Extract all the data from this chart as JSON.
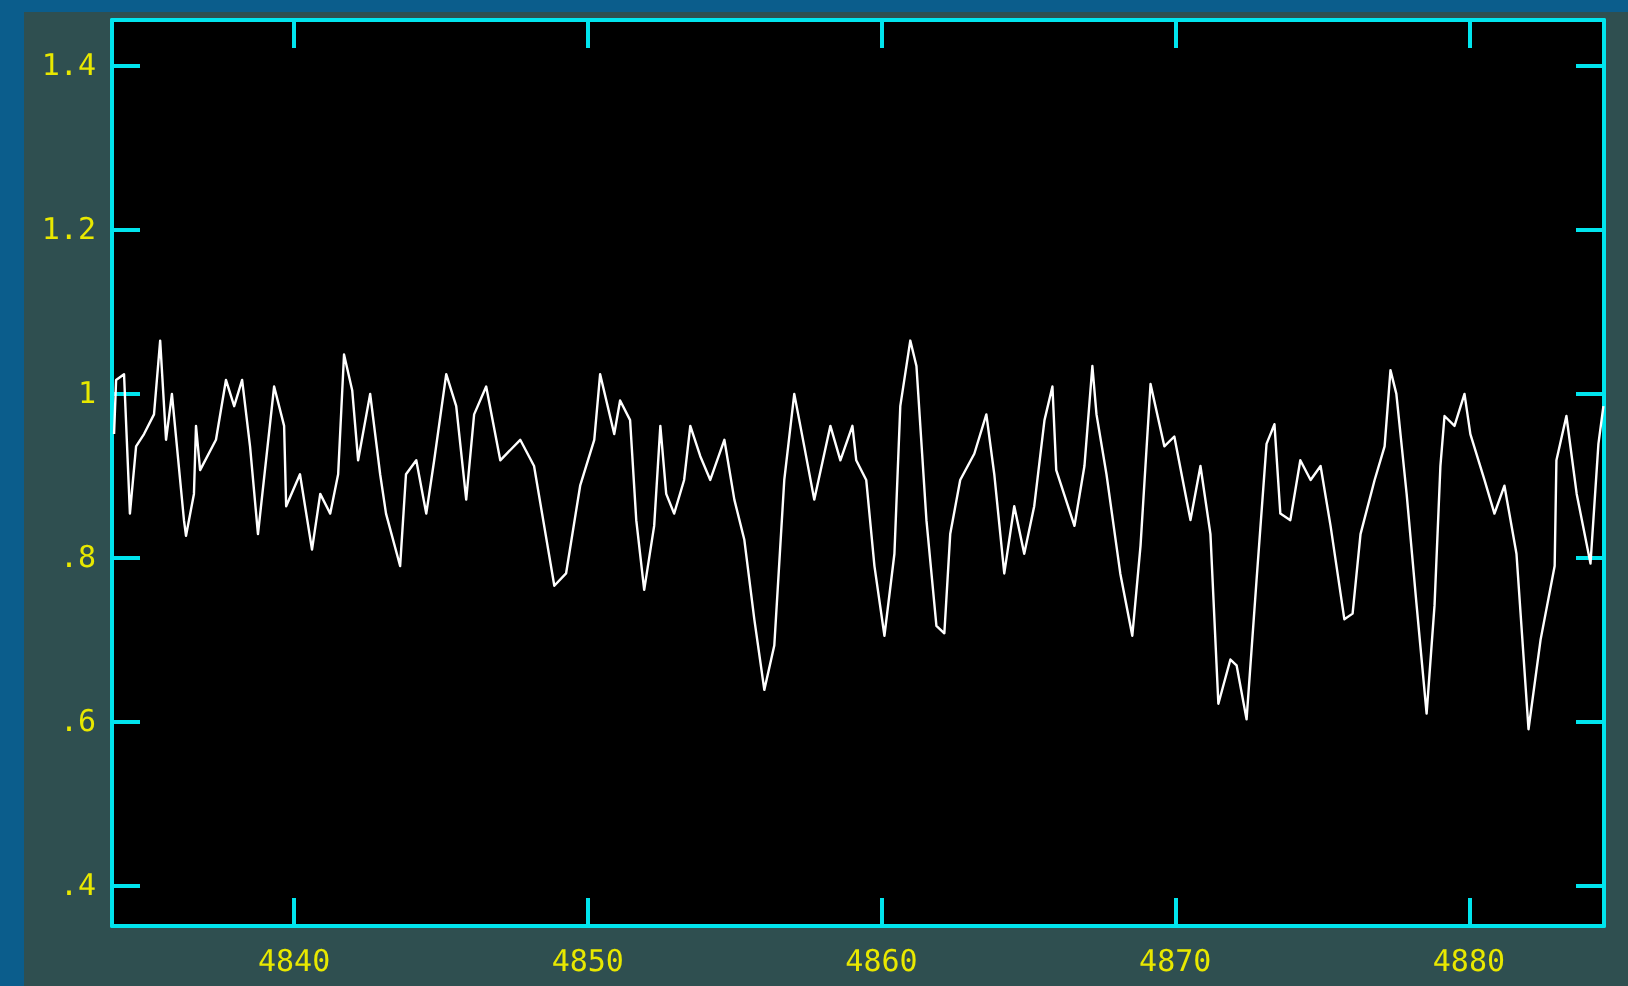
{
  "chart_data": {
    "type": "line",
    "color": "#ffffff",
    "marker": "none",
    "line_style": "solid",
    "xlim": [
      4833.8,
      4884.6
    ],
    "xticks": [
      4840,
      4850,
      4860,
      4870,
      4880
    ],
    "ylim": [
      0.35,
      1.455
    ],
    "yticks": [
      {
        "value": 0.4,
        "label": ".4"
      },
      {
        "value": 0.6,
        "label": ".6"
      },
      {
        "value": 0.8,
        "label": ".8"
      },
      1,
      1.2,
      1.4
    ],
    "x": [
      4833.87,
      4833.94,
      4834.21,
      4834.41,
      4834.62,
      4834.89,
      4835.23,
      4835.44,
      4835.64,
      4835.84,
      4836.25,
      4836.32,
      4836.59,
      4836.66,
      4836.8,
      4837.34,
      4837.68,
      4837.96,
      4838.23,
      4838.5,
      4838.77,
      4839.32,
      4839.66,
      4839.73,
      4840.2,
      4840.61,
      4840.89,
      4841.23,
      4841.5,
      4841.7,
      4841.98,
      4842.18,
      4842.59,
      4842.93,
      4843.13,
      4843.61,
      4843.81,
      4844.16,
      4844.5,
      4844.77,
      4845.18,
      4845.52,
      4845.86,
      4846.13,
      4846.54,
      4847.02,
      4847.7,
      4848.17,
      4848.86,
      4849.26,
      4849.74,
      4850.22,
      4850.42,
      4850.9,
      4851.1,
      4851.44,
      4851.65,
      4851.92,
      4852.26,
      4852.47,
      4852.67,
      4852.94,
      4853.28,
      4853.49,
      4853.83,
      4854.17,
      4854.65,
      4854.99,
      4855.33,
      4855.67,
      4856.01,
      4856.35,
      4856.69,
      4857.03,
      4857.37,
      4857.71,
      4858.26,
      4858.6,
      4859.01,
      4859.14,
      4859.48,
      4859.76,
      4860.1,
      4860.44,
      4860.64,
      4860.98,
      4861.19,
      4861.53,
      4861.87,
      4862.14,
      4862.34,
      4862.68,
      4863.16,
      4863.57,
      4863.84,
      4864.18,
      4864.52,
      4864.86,
      4865.2,
      4865.55,
      4865.82,
      4865.95,
      4866.57,
      4866.91,
      4867.18,
      4867.32,
      4867.66,
      4868.13,
      4868.54,
      4868.82,
      4869.16,
      4869.63,
      4869.97,
      4870.52,
      4870.86,
      4871.2,
      4871.47,
      4871.88,
      4872.09,
      4872.43,
      4872.77,
      4873.11,
      4873.38,
      4873.58,
      4873.92,
      4874.26,
      4874.61,
      4874.95,
      4875.29,
      4875.76,
      4876.04,
      4876.31,
      4876.79,
      4877.13,
      4877.33,
      4877.53,
      4877.88,
      4878.22,
      4878.56,
      4878.83,
      4879.03,
      4879.17,
      4879.51,
      4879.85,
      4880.05,
      4880.53,
      4880.87,
      4881.21,
      4881.62,
      4882.03,
      4882.44,
      4882.92,
      4882.98,
      4883.32,
      4883.67,
      4884.14,
      4884.41,
      4884.58
    ],
    "values": [
      0.95,
      1.016,
      1.023,
      0.853,
      0.935,
      0.95,
      0.974,
      1.064,
      0.943,
      0.999,
      0.845,
      0.826,
      0.877,
      0.96,
      0.906,
      0.943,
      1.016,
      0.984,
      1.016,
      0.935,
      0.828,
      1.008,
      0.96,
      0.862,
      0.901,
      0.809,
      0.877,
      0.853,
      0.901,
      1.047,
      1.003,
      0.918,
      0.999,
      0.901,
      0.853,
      0.789,
      0.901,
      0.918,
      0.853,
      0.918,
      1.023,
      0.984,
      0.87,
      0.974,
      1.008,
      0.918,
      0.943,
      0.911,
      0.765,
      0.78,
      0.887,
      0.943,
      1.023,
      0.95,
      0.991,
      0.967,
      0.845,
      0.76,
      0.838,
      0.96,
      0.877,
      0.853,
      0.894,
      0.96,
      0.923,
      0.894,
      0.943,
      0.87,
      0.821,
      0.724,
      0.638,
      0.692,
      0.894,
      0.999,
      0.935,
      0.87,
      0.96,
      0.918,
      0.96,
      0.918,
      0.894,
      0.789,
      0.704,
      0.804,
      0.984,
      1.064,
      1.033,
      0.845,
      0.716,
      0.707,
      0.828,
      0.894,
      0.926,
      0.974,
      0.901,
      0.78,
      0.862,
      0.804,
      0.862,
      0.967,
      1.008,
      0.906,
      0.838,
      0.911,
      1.033,
      0.974,
      0.901,
      0.78,
      0.704,
      0.814,
      1.011,
      0.935,
      0.947,
      0.845,
      0.911,
      0.828,
      0.621,
      0.675,
      0.668,
      0.602,
      0.772,
      0.938,
      0.962,
      0.853,
      0.845,
      0.918,
      0.894,
      0.911,
      0.838,
      0.724,
      0.731,
      0.828,
      0.894,
      0.935,
      1.028,
      0.999,
      0.877,
      0.741,
      0.609,
      0.741,
      0.911,
      0.972,
      0.96,
      0.999,
      0.95,
      0.894,
      0.853,
      0.887,
      0.804,
      0.59,
      0.699,
      0.789,
      0.918,
      0.972,
      0.877,
      0.792,
      0.938,
      0.984
    ]
  }
}
